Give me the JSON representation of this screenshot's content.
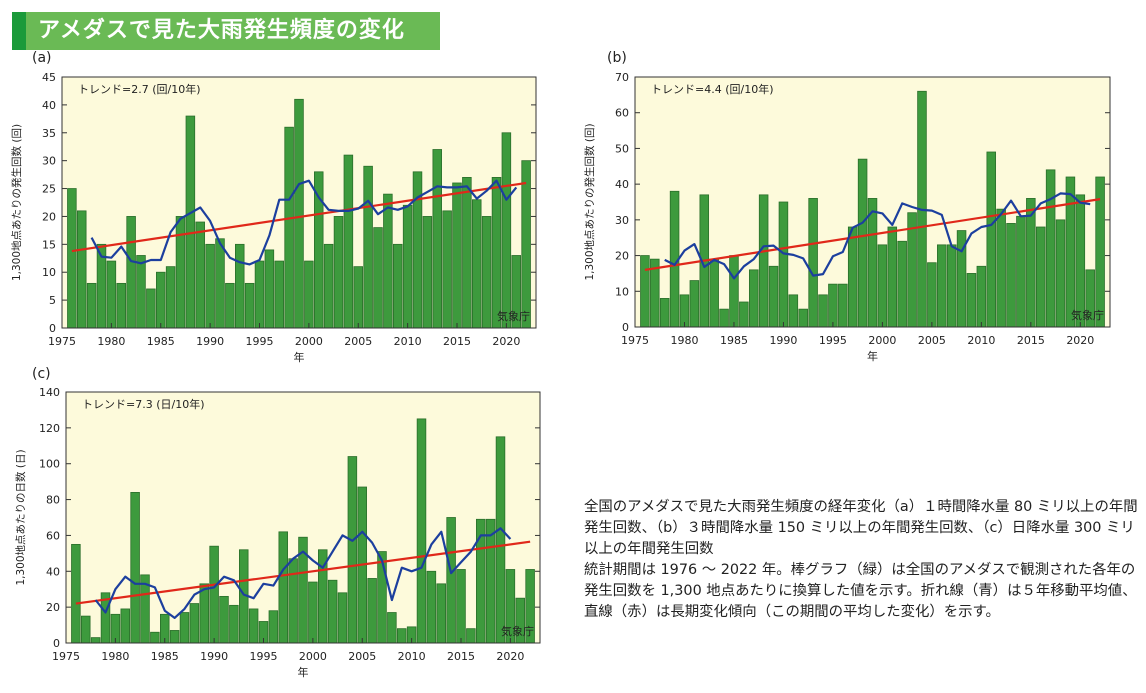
{
  "header": {
    "title": "アメダスで見た大雨発生頻度の変化"
  },
  "caption": {
    "line1": "全国のアメダスで見た大雨発生頻度の経年変化（a）１時間降水量 80 ミリ以上の年間発生回数、（b）３時間降水量 150 ミリ以上の年間発生回数、（c）日降水量 300 ミリ以上の年間発生回数",
    "line2": "統計期間は 1976 ～ 2022 年。棒グラフ（緑）は全国のアメダスで観測された各年の発生回数を 1,300 地点あたりに換算した値を示す。折れ線（青）は５年移動平均値、直線（赤）は長期変化傾向（この期間の平均した変化）を示す。"
  },
  "colors": {
    "bar": "#3d9a3d",
    "bar_edge": "#2a6e2a",
    "ma": "#1c3f9e",
    "trend": "#e0281a",
    "plot_bg": "#fdfadb"
  },
  "chart_data": [
    {
      "panel": "(a)",
      "type": "bar",
      "title": "トレンド=2.7 (回/10年)",
      "ylabel": "1,300地点あたりの発生回数 (回)",
      "xlabel": "年",
      "source": "気象庁",
      "ylim": [
        0,
        45
      ],
      "yticks": [
        0,
        5,
        10,
        15,
        20,
        25,
        30,
        35,
        40,
        45
      ],
      "xticks": [
        1975,
        1980,
        1985,
        1990,
        1995,
        2000,
        2005,
        2010,
        2015,
        2020
      ],
      "years_start": 1976,
      "values": [
        25,
        21,
        8,
        15,
        12,
        8,
        20,
        13,
        7,
        10,
        11,
        20,
        38,
        19,
        15,
        16,
        8,
        15,
        8,
        12,
        14,
        12,
        36,
        41,
        12,
        28,
        15,
        20,
        31,
        11,
        29,
        18,
        24,
        15,
        22,
        28,
        20,
        32,
        21,
        26,
        27,
        23,
        20,
        27,
        35,
        13,
        30
      ],
      "moving_avg_start": 1978,
      "moving_avg": [
        16.2,
        12.8,
        12.6,
        14.6,
        12.0,
        11.6,
        12.2,
        12.2,
        17.2,
        19.6,
        20.6,
        21.6,
        19.2,
        15.2,
        12.6,
        11.8,
        11.4,
        12.2,
        16.6,
        23.0,
        23.0,
        25.8,
        26.4,
        23.4,
        21.2,
        21.0,
        21.0,
        21.4,
        22.8,
        20.4,
        21.6,
        21.2,
        21.8,
        23.4,
        24.4,
        25.4,
        25.2,
        25.2,
        25.4,
        23.2,
        24.6,
        26.4,
        23.0,
        25.2
      ],
      "trend": [
        13.8,
        26.0
      ]
    },
    {
      "panel": "(b)",
      "type": "bar",
      "title": "トレンド=4.4 (回/10年)",
      "ylabel": "1,300地点あたりの発生回数 (回)",
      "xlabel": "年",
      "source": "気象庁",
      "ylim": [
        0,
        70
      ],
      "yticks": [
        0,
        10,
        20,
        30,
        40,
        50,
        60,
        70
      ],
      "xticks": [
        1975,
        1980,
        1985,
        1990,
        1995,
        2000,
        2005,
        2010,
        2015,
        2020
      ],
      "years_start": 1976,
      "values": [
        20,
        19,
        8,
        38,
        9,
        13,
        37,
        19,
        5,
        20,
        7,
        16,
        37,
        17,
        35,
        9,
        5,
        36,
        9,
        12,
        12,
        28,
        47,
        36,
        23,
        28,
        24,
        32,
        66,
        18,
        23,
        23,
        27,
        15,
        17,
        49,
        33,
        29,
        31,
        36,
        28,
        44,
        30,
        42,
        37,
        16,
        42
      ],
      "moving_avg_start": 1978,
      "moving_avg": [
        18.8,
        17.4,
        21.4,
        23.2,
        16.8,
        18.8,
        17.6,
        13.6,
        17.0,
        19.0,
        22.6,
        22.8,
        20.6,
        20.2,
        19.2,
        14.4,
        14.8,
        19.8,
        21.0,
        27.8,
        29.2,
        32.4,
        31.8,
        28.6,
        34.6,
        33.6,
        32.8,
        32.6,
        31.4,
        22.6,
        21.2,
        26.2,
        28.0,
        28.6,
        31.6,
        35.4,
        31.0,
        31.2,
        34.6,
        35.8,
        37.4,
        37.2,
        34.8,
        34.4
      ],
      "trend": [
        16.0,
        35.8
      ]
    },
    {
      "panel": "(c)",
      "type": "bar",
      "title": "トレンド=7.3 (日/10年)",
      "ylabel": "1,300地点あたりの日数 (日)",
      "xlabel": "年",
      "source": "気象庁",
      "ylim": [
        0,
        140
      ],
      "yticks": [
        0,
        20,
        40,
        60,
        80,
        100,
        120,
        140
      ],
      "xticks": [
        1975,
        1980,
        1985,
        1990,
        1995,
        2000,
        2005,
        2010,
        2015,
        2020
      ],
      "years_start": 1976,
      "values": [
        55,
        15,
        3,
        28,
        16,
        19,
        84,
        38,
        6,
        16,
        7,
        17,
        22,
        33,
        54,
        26,
        21,
        52,
        19,
        12,
        18,
        62,
        47,
        59,
        34,
        52,
        35,
        28,
        104,
        87,
        36,
        51,
        17,
        8,
        9,
        125,
        40,
        33,
        70,
        41,
        8,
        69,
        69,
        115,
        41,
        25,
        41
      ],
      "moving_avg_start": 1978,
      "moving_avg": [
        24,
        17,
        30,
        37,
        33,
        33,
        31,
        18,
        14,
        19,
        27,
        30,
        31,
        37,
        35,
        27,
        25,
        33,
        32,
        41,
        47,
        51,
        46,
        42,
        51,
        60,
        57,
        62,
        56,
        46,
        24,
        42,
        40,
        42,
        55,
        62,
        39,
        45,
        51,
        60,
        60,
        64,
        58
      ],
      "trend": [
        22.0,
        56.5
      ]
    }
  ]
}
